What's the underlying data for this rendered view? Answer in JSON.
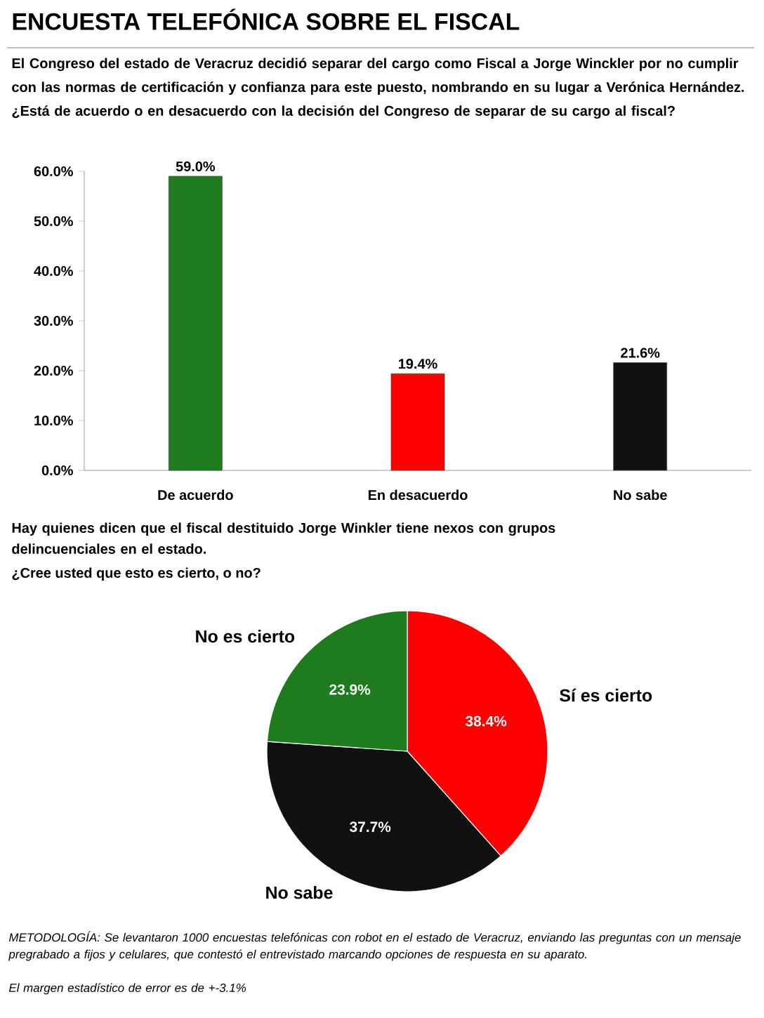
{
  "chart_data": [
    {
      "type": "bar",
      "title": "ENCUESTA TELEFÓNICA SOBRE EL FISCAL",
      "subtitle": "El Congreso del estado de Veracruz decidió separar del cargo como Fiscal a Jorge Winckler por no cumplir con las normas de certificación y confianza para este puesto, nombrando en su lugar a Verónica Hernández. ¿Está de acuerdo o en desacuerdo con la decisión del Congreso de separar de su cargo al fiscal?",
      "categories": [
        "De acuerdo",
        "En desacuerdo",
        "No sabe"
      ],
      "values": [
        59.0,
        19.4,
        21.6
      ],
      "colors": [
        "#1e7b1e",
        "#ff0000",
        "#111111"
      ],
      "value_labels": [
        "59.0%",
        "19.4%",
        "21.6%"
      ],
      "ylim": [
        0,
        60
      ],
      "yticks": [
        {
          "value": 0,
          "label": "0.0%"
        },
        {
          "value": 10,
          "label": "10.0%"
        },
        {
          "value": 20,
          "label": "20.0%"
        },
        {
          "value": 30,
          "label": "30.0%"
        },
        {
          "value": 40,
          "label": "40.0%"
        },
        {
          "value": 50,
          "label": "50.0%"
        },
        {
          "value": 60,
          "label": "60.0%"
        }
      ]
    },
    {
      "type": "pie",
      "title": "Hay quienes dicen que el fiscal destituido Jorge Winkler tiene nexos con grupos delincuenciales en el estado.",
      "subtitle": "¿Cree usted que esto es cierto, o no?",
      "categories": [
        "Sí es cierto",
        "No sabe",
        "No es cierto"
      ],
      "values": [
        38.4,
        37.7,
        23.9
      ],
      "colors": [
        "#ff0000",
        "#111111",
        "#1e7b1e"
      ],
      "value_labels": [
        "38.4%",
        "37.7%",
        "23.9%"
      ],
      "annotations": [
        "METODOLOGÍA: Se levantaron 1000 encuestas telefónicas con robot en el estado de Veracruz, enviando las preguntas con un mensaje pregrabado a fijos y celulares, que contestó el entrevistado marcando opciones de respuesta en su aparato.",
        "El margen estadístico de error es de +-3.1%"
      ]
    }
  ]
}
